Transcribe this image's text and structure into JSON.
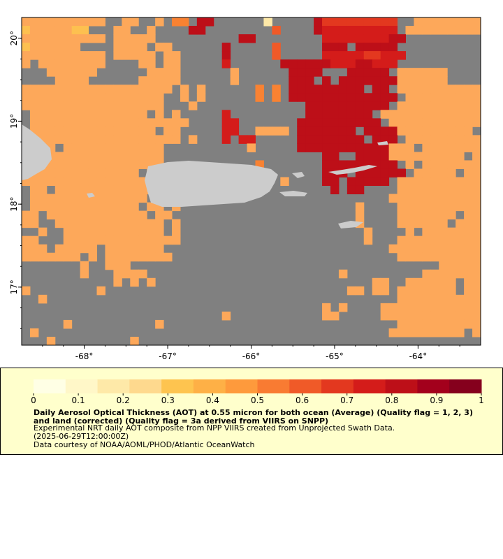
{
  "map": {
    "lon_range": [
      -68.75,
      -63.25
    ],
    "lat_range": [
      16.3,
      20.25
    ],
    "x_ticks": [
      {
        "value": -68,
        "label": "-68°"
      },
      {
        "value": -67,
        "label": "-67°"
      },
      {
        "value": -66,
        "label": "-66°"
      },
      {
        "value": -65,
        "label": "-65°"
      },
      {
        "value": -64,
        "label": "-64°"
      }
    ],
    "y_ticks": [
      {
        "value": 20,
        "label": "20°"
      },
      {
        "value": 19,
        "label": "19°"
      },
      {
        "value": 18,
        "label": "18°"
      },
      {
        "value": 17,
        "label": "17°"
      }
    ],
    "background_color": "#808080",
    "land_color": "#cccccc",
    "grid_cols": 55,
    "grid_rows": 39,
    "aot_grid": [
      "4444444444..44..4.55.99......1.....9777777777..444444444",
      "34444433...44..4....99........6....9888888888.4444444444",
      "4444444444.44444..........99........8888888899..........",
      "3444444....4444.44......9.....6.....999.99999...........",
      "4444444444.44444.44.....9.....6.....8888877888..........",
      "4.44444444....44.44.....8......99999988899888...........",
      "...444444......4444......4......9999...99999.444444.....",
      "....4444......44444......4......999.9.9999999444444.....",
      "444444444444444444.4.4......5.5.999999999.99.44444444444",
      "44444444444444444..4.4......5.5.9999999999999.4444444444",
      "44444444444444444...4.............9999999999.44444444444",
      ".44444444444444.4.4.....8.........99999999.4444444444444",
      ".4444444444444444444....88.......9999999999.444444444444",
      ".444444444444444.44.....88..4444.9999999.9999444444444..",
      "4444444444444444444.4...8.88.....99999999.999.444444444.",
      ".444.444444444444..........4.....99999999999444.44444444",
      "44444444444444444...................99..9999444444444.44",
      "44444444444444444...........5.......999999999.4.44444444",
      "44444444444444.44.......4...7.......999.999999.44444.444",
      "44444444444444444..............4....99.99999.4444444444.",
      ".44.4444444444444...........4........9.99....44444444444",
      ".44444444444444.444.........................444444444444",
      ".4444444444444.44.4.....................4....44444444444",
      "44.444444444444.44......................4....4444444.444",
      "44..4444444444444.4.....................4....444444.4444",
      "..4..444444444444.4......................4....4.44444444",
      "44...44444444444444......................4...44444444444",
      "444.44444.4444444...........................444444444444",
      "4444444.4.44444444...........................44444444444",
      ".......4..444.....................................444444",
      ".......4...4444.......................4.........44444444",
      "...........4.4.4..........................44..444444.444",
      "4........4.............................44.44.4444444.444",
      "..4..........................................44444444444",
      "....................................4.4....4444444444444.",
      "........................4...........44.....44444444444444",
      ".....4..........4............................4444444444.",
      ".4..........................................444444444.444",
      "...4.........4.........................................44"
    ],
    "land_masks": [
      {
        "name": "puerto-rico",
        "lon": [
          -67.27,
          -65.58
        ],
        "lat": [
          17.92,
          18.52
        ]
      },
      {
        "name": "hispaniola-east",
        "lon": [
          -68.75,
          -68.35
        ],
        "lat": [
          18.2,
          19.1
        ]
      }
    ]
  },
  "legend": {
    "colorbar_min": 0,
    "colorbar_max": 1,
    "ticks": [
      {
        "value": 0,
        "label": "0"
      },
      {
        "value": 0.1,
        "label": "0.1"
      },
      {
        "value": 0.2,
        "label": "0.2"
      },
      {
        "value": 0.3,
        "label": "0.3"
      },
      {
        "value": 0.4,
        "label": "0.4"
      },
      {
        "value": 0.5,
        "label": "0.5"
      },
      {
        "value": 0.6,
        "label": "0.6"
      },
      {
        "value": 0.7,
        "label": "0.7"
      },
      {
        "value": 0.8,
        "label": "0.8"
      },
      {
        "value": 0.9,
        "label": "0.9"
      },
      {
        "value": 1,
        "label": "1"
      }
    ],
    "colors": [
      "#ffffe5",
      "#fff7c8",
      "#fee9a8",
      "#fed98e",
      "#fec44f",
      "#feb046",
      "#fe9a3c",
      "#f97b32",
      "#f05a28",
      "#e3381f",
      "#d41c1a",
      "#bd0f18",
      "#a3001c",
      "#85001d"
    ],
    "title": "Daily Aerosol Optical Thickness (AOT) at 0.55 micron for both ocean (Average) (Quality flag = 1, 2, 3) and land (corrected) (Quality flag = 3a derived from VIIRS on SNPP)",
    "subtitle": "Experimental NRT daily AOT composite from NPP VIIRS created from Unprojected Swath Data.",
    "date": "(2025-06-29T12:00:00Z)",
    "credit": "Data courtesy of NOAA/AOML/PHOD/Atlantic OceanWatch"
  }
}
